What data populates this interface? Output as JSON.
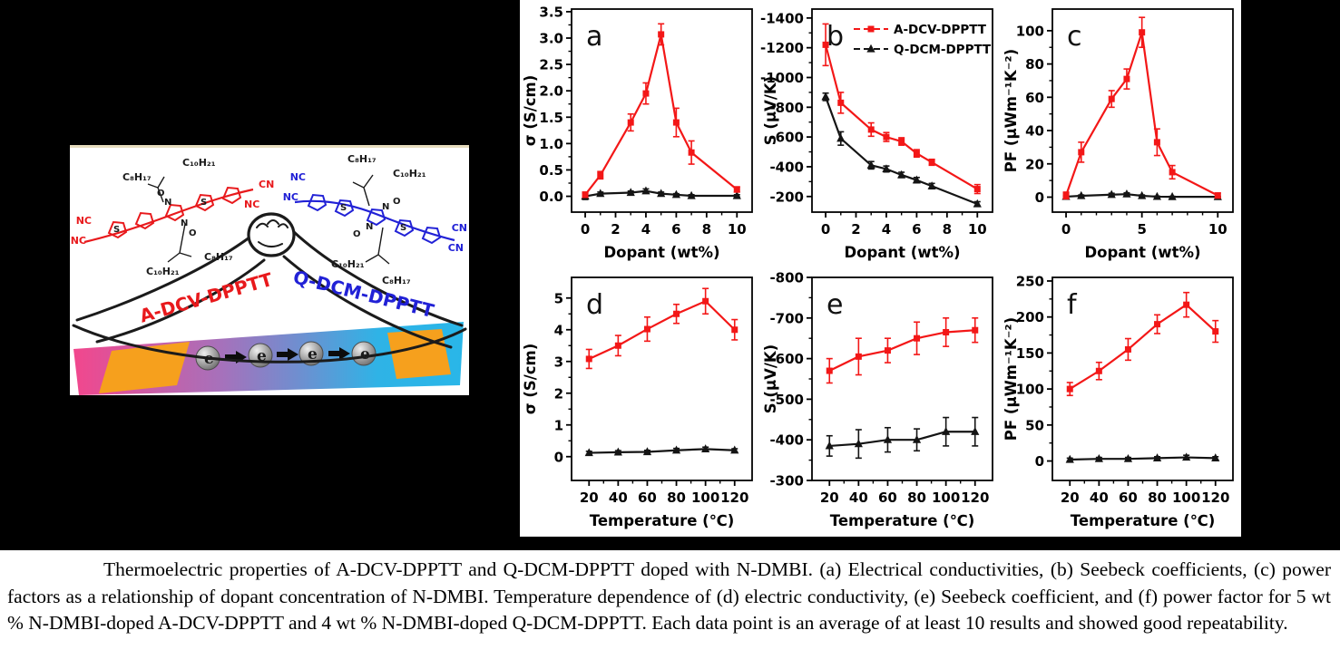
{
  "caption": {
    "text": "Thermoelectric properties of A-DCV-DPPTT and Q-DCM-DPPTT doped with N-DMBI. (a) Electrical conductivities, (b) Seebeck coefficients, (c) power factors as a relationship of dopant concentration of N-DMBI. Temperature dependence of (d) electric conductivity, (e) Seebeck coefficient, and (f) power factor for 5 wt % N-DMBI-doped A-DCV-DPPTT and 4 wt % N-DMBI-doped Q-DCM-DPPTT. Each data point is an average of at least 10 results and showed good repeatability."
  },
  "illustration": {
    "left_name": "A-DCV-DPPTT",
    "right_name": "Q-DCM-DPPTT",
    "left_color": "#e8191c",
    "right_color": "#2121d6",
    "electron": "e",
    "labels": {
      "c8": "C₈H₁₇",
      "c10": "C₁₀H₂₁",
      "nc": "NC",
      "cn": "CN",
      "s": "S",
      "n": "N",
      "o": "O"
    },
    "band_colors": [
      "#f2478d",
      "#a671bb",
      "#2fb3e6"
    ],
    "electrode_color": "#f6a01d"
  },
  "chart_data": [
    {
      "type": "line",
      "panel": "a",
      "xlabel": "Dopant (wt%)",
      "ylabel": "σ (S/cm)",
      "xlim": [
        -0.9,
        11
      ],
      "ylim": [
        -0.3,
        3.55
      ],
      "xticks": [
        0,
        2,
        4,
        6,
        8,
        10
      ],
      "xtick_labels": [
        "0",
        "2",
        "4",
        "6",
        "8",
        "10"
      ],
      "xminor": [
        1,
        3,
        5,
        7,
        9
      ],
      "yticks": [
        0,
        0.5,
        1,
        1.5,
        2,
        2.5,
        3,
        3.5
      ],
      "ytick_labels": [
        "0.0",
        "0.5",
        "1.0",
        "1.5",
        "2.0",
        "2.5",
        "3.0",
        "3.5"
      ],
      "legend": false,
      "x": [
        0,
        1,
        3,
        4,
        5,
        6,
        7,
        10
      ],
      "series": [
        {
          "name": "A-DCV-DPPTT",
          "color": "#f31717",
          "marker": "square",
          "y": [
            0.03,
            0.4,
            1.4,
            1.95,
            3.07,
            1.4,
            0.83,
            0.13
          ],
          "err": [
            0.05,
            0.07,
            0.16,
            0.2,
            0.2,
            0.27,
            0.22,
            0.05
          ]
        },
        {
          "name": "Q-DCM-DPPTT",
          "color": "#141414",
          "marker": "triangle",
          "y": [
            0.0,
            0.05,
            0.07,
            0.1,
            0.05,
            0.03,
            0.01,
            0.01
          ],
          "err": [
            0.06,
            0.03,
            0.03,
            0.04,
            0.03,
            0.02,
            0.02,
            0.02
          ]
        }
      ]
    },
    {
      "type": "line",
      "panel": "b",
      "xlabel": "Dopant (wt%)",
      "ylabel": "S (μV/K)",
      "xlim": [
        -0.9,
        11
      ],
      "ylim": [
        -95,
        -1460
      ],
      "xticks": [
        0,
        2,
        4,
        6,
        8,
        10
      ],
      "xtick_labels": [
        "0",
        "2",
        "4",
        "6",
        "8",
        "10"
      ],
      "xminor": [
        1,
        3,
        5,
        7,
        9
      ],
      "yticks": [
        -1400,
        -1200,
        -1000,
        -800,
        -600,
        -400,
        -200
      ],
      "ytick_labels": [
        "-1400",
        "-1200",
        "-1000",
        "-800",
        "-600",
        "-400",
        "-200"
      ],
      "legend": true,
      "x": [
        0,
        1,
        3,
        4,
        5,
        6,
        7,
        10
      ],
      "series": [
        {
          "name": "A-DCV-DPPTT",
          "color": "#f31717",
          "marker": "square",
          "y": [
            -1220,
            -830,
            -650,
            -600,
            -570,
            -490,
            -430,
            -250
          ],
          "err": [
            140,
            70,
            45,
            30,
            25,
            25,
            20,
            30
          ]
        },
        {
          "name": "Q-DCM-DPPTT",
          "color": "#141414",
          "marker": "triangle",
          "y": [
            -870,
            -590,
            -410,
            -385,
            -345,
            -310,
            -270,
            -150
          ],
          "err": [
            25,
            45,
            25,
            20,
            18,
            18,
            18,
            15
          ]
        }
      ]
    },
    {
      "type": "line",
      "panel": "c",
      "xlabel": "Dopant (wt%)",
      "ylabel": "PF (μWm⁻¹K⁻²)",
      "xlim": [
        -0.9,
        11
      ],
      "ylim": [
        -9,
        113
      ],
      "xticks": [
        0,
        5,
        10
      ],
      "xtick_labels": [
        "0",
        "5",
        "10"
      ],
      "xminor": [
        1,
        2,
        3,
        4,
        6,
        7,
        8,
        9
      ],
      "yticks": [
        0,
        20,
        40,
        60,
        80,
        100
      ],
      "ytick_labels": [
        "0",
        "20",
        "40",
        "60",
        "80",
        "100"
      ],
      "legend": false,
      "x": [
        0,
        1,
        3,
        4,
        5,
        6,
        7,
        10
      ],
      "series": [
        {
          "name": "A-DCV-DPPTT",
          "color": "#f31717",
          "marker": "square",
          "y": [
            1,
            27,
            59,
            71,
            99,
            33,
            15,
            1
          ],
          "err": [
            2,
            6,
            5,
            6,
            9,
            8,
            4,
            1.5
          ]
        },
        {
          "name": "Q-DCM-DPPTT",
          "color": "#141414",
          "marker": "triangle",
          "y": [
            0.3,
            0.8,
            1.5,
            1.8,
            0.8,
            0.3,
            0.2,
            0.2
          ],
          "err": [
            0.5,
            0.5,
            0.8,
            0.8,
            0.5,
            0.3,
            0.3,
            0.3
          ]
        }
      ]
    },
    {
      "type": "line",
      "panel": "d",
      "xlabel": "Temperature (℃)",
      "ylabel": "σ (S/cm)",
      "xlim": [
        8,
        132
      ],
      "ylim": [
        -0.75,
        5.65
      ],
      "xticks": [
        20,
        40,
        60,
        80,
        100,
        120
      ],
      "xtick_labels": [
        "20",
        "40",
        "60",
        "80",
        "100",
        "120"
      ],
      "xminor": [
        30,
        50,
        70,
        90,
        110
      ],
      "yticks": [
        0,
        1,
        2,
        3,
        4,
        5
      ],
      "ytick_labels": [
        "0",
        "1",
        "2",
        "3",
        "4",
        "5"
      ],
      "legend": false,
      "x": [
        20,
        40,
        60,
        80,
        100,
        120
      ],
      "series": [
        {
          "name": "A-DCV-DPPTT",
          "color": "#f31717",
          "marker": "square",
          "y": [
            3.08,
            3.5,
            4.02,
            4.5,
            4.9,
            4.0
          ],
          "err": [
            0.3,
            0.32,
            0.38,
            0.3,
            0.4,
            0.32
          ]
        },
        {
          "name": "Q-DCM-DPPTT",
          "color": "#141414",
          "marker": "triangle",
          "y": [
            0.12,
            0.14,
            0.15,
            0.2,
            0.24,
            0.2
          ],
          "err": [
            0.05,
            0.05,
            0.05,
            0.06,
            0.06,
            0.05
          ]
        }
      ]
    },
    {
      "type": "line",
      "panel": "e",
      "xlabel": "Temperature (℃)",
      "ylabel": "S (μV/K)",
      "xlim": [
        8,
        132
      ],
      "ylim": [
        -300,
        -800
      ],
      "xticks": [
        20,
        40,
        60,
        80,
        100,
        120
      ],
      "xtick_labels": [
        "20",
        "40",
        "60",
        "80",
        "100",
        "120"
      ],
      "xminor": [
        30,
        50,
        70,
        90,
        110
      ],
      "yticks": [
        -800,
        -700,
        -600,
        -500,
        -400,
        -300
      ],
      "ytick_labels": [
        "-800",
        "-700",
        "-600",
        "-500",
        "-400",
        "-300"
      ],
      "legend": false,
      "x": [
        20,
        40,
        60,
        80,
        100,
        120
      ],
      "series": [
        {
          "name": "A-DCV-DPPTT",
          "color": "#f31717",
          "marker": "square",
          "y": [
            -570,
            -605,
            -620,
            -650,
            -665,
            -670
          ],
          "err": [
            30,
            45,
            30,
            40,
            35,
            30
          ]
        },
        {
          "name": "Q-DCM-DPPTT",
          "color": "#141414",
          "marker": "triangle",
          "y": [
            -385,
            -390,
            -400,
            -400,
            -420,
            -420
          ],
          "err": [
            25,
            35,
            30,
            27,
            35,
            35
          ]
        }
      ]
    },
    {
      "type": "line",
      "panel": "f",
      "xlabel": "Temperature (℃)",
      "ylabel": "PF (μWm⁻¹K⁻²)",
      "xlim": [
        8,
        132
      ],
      "ylim": [
        -27,
        255
      ],
      "xticks": [
        20,
        40,
        60,
        80,
        100,
        120
      ],
      "xtick_labels": [
        "20",
        "40",
        "60",
        "80",
        "100",
        "120"
      ],
      "xminor": [
        30,
        50,
        70,
        90,
        110
      ],
      "yticks": [
        0,
        50,
        100,
        150,
        200,
        250
      ],
      "ytick_labels": [
        "0",
        "50",
        "100",
        "150",
        "200",
        "250"
      ],
      "legend": false,
      "x": [
        20,
        40,
        60,
        80,
        100,
        120
      ],
      "series": [
        {
          "name": "A-DCV-DPPTT",
          "color": "#f31717",
          "marker": "square",
          "y": [
            100,
            125,
            155,
            190,
            217,
            180
          ],
          "err": [
            9,
            12,
            15,
            13,
            17,
            15
          ]
        },
        {
          "name": "Q-DCM-DPPTT",
          "color": "#141414",
          "marker": "triangle",
          "y": [
            2,
            3,
            3,
            4,
            5,
            4
          ],
          "err": [
            2,
            2,
            2,
            2,
            3,
            2
          ]
        }
      ]
    }
  ]
}
